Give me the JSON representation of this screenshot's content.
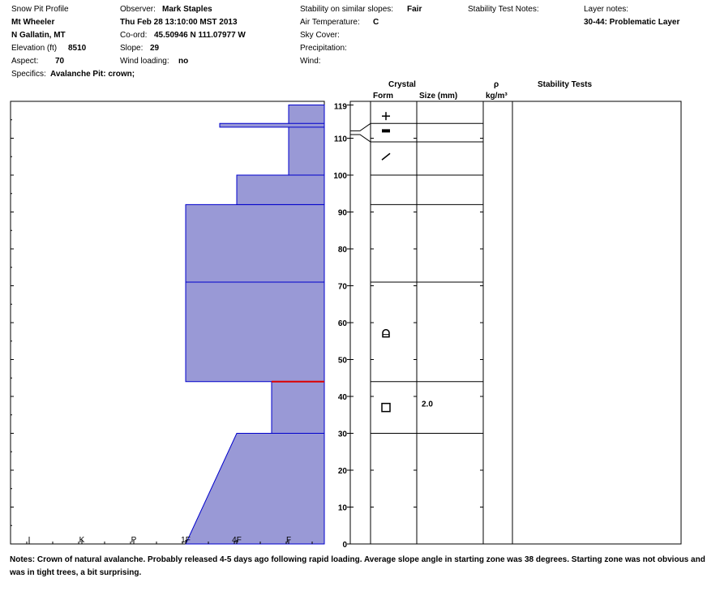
{
  "header": {
    "profile_title": "Snow Pit Profile",
    "location_name": "Mt Wheeler",
    "region": "N Gallatin, MT",
    "elevation_label": "Elevation (ft)",
    "elevation_value": "8510",
    "aspect_label": "Aspect:",
    "aspect_value": "70",
    "specifics_label": "Specifics:",
    "specifics_value": "Avalanche Pit: crown;",
    "observer_label": "Observer:",
    "observer_value": "Mark Staples",
    "datetime": "Thu Feb 28 13:10:00 MST 2013",
    "coord_label": "Co-ord:",
    "coord_value": "45.50946 N 111.07977 W",
    "slope_label": "Slope:",
    "slope_value": "29",
    "wind_loading_label": "Wind loading:",
    "wind_loading_value": "no",
    "stability_label": "Stability on similar slopes:",
    "stability_value": "Fair",
    "air_temp_label": "Air Temperature:",
    "air_temp_value": "C",
    "sky_cover_label": "Sky Cover:",
    "precipitation_label": "Precipitation:",
    "wind_label": "Wind:",
    "stability_notes_label": "Stability Test Notes:",
    "layer_notes_label": "Layer notes:",
    "layer_notes_value": "30-44: Problematic Layer"
  },
  "table_headers": {
    "crystal": "Crystal",
    "form": "Form",
    "size": "Size (mm)",
    "rho": "ρ",
    "density_unit": "kg/m³",
    "stability_tests": "Stability Tests"
  },
  "notes": {
    "label": "Notes:",
    "text": "Crown of natural avalanche. Probably released 4-5 days ago following rapid loading. Average slope angle in starting zone was 38 degrees. Starting zone was not obvious and was in tight trees, a bit surprising."
  },
  "colors": {
    "fill": "#9999d6",
    "stroke": "#0000cc",
    "weak_layer": "#dd0000"
  },
  "chart_data": {
    "type": "area",
    "title": "",
    "xlabel": "",
    "ylabel": "",
    "ylim": [
      0,
      120
    ],
    "hand_hardness_scale": [
      "I",
      "K",
      "P",
      "1F",
      "4F",
      "F"
    ],
    "y_ticks": [
      0,
      10,
      20,
      30,
      40,
      50,
      60,
      70,
      80,
      90,
      100,
      110
    ],
    "snow_depth": 119,
    "hardness_profile": [
      {
        "bottom": 0,
        "top": 30,
        "hardness_bottom": "1F",
        "hardness_top": "4F"
      },
      {
        "bottom": 30,
        "top": 44,
        "hardness": "F+"
      },
      {
        "bottom": 44,
        "top": 92,
        "hardness": "1F"
      },
      {
        "bottom": 92,
        "top": 100,
        "hardness": "4F"
      },
      {
        "bottom": 100,
        "top": 119,
        "hardness": "F"
      },
      {
        "bottom": 113,
        "top": 114,
        "hardness": "1F-"
      }
    ],
    "layer_boundaries": [
      119,
      114,
      109,
      100,
      92,
      71,
      44,
      30
    ],
    "weak_layer_depth": 44,
    "grain_layers": [
      {
        "depth": 116,
        "form": "plus"
      },
      {
        "depth": 112,
        "form": "dash"
      },
      {
        "depth": 105,
        "form": "slash"
      },
      {
        "depth": 57,
        "form": "cup"
      },
      {
        "depth": 37,
        "form": "square",
        "size": "2.0"
      }
    ]
  }
}
